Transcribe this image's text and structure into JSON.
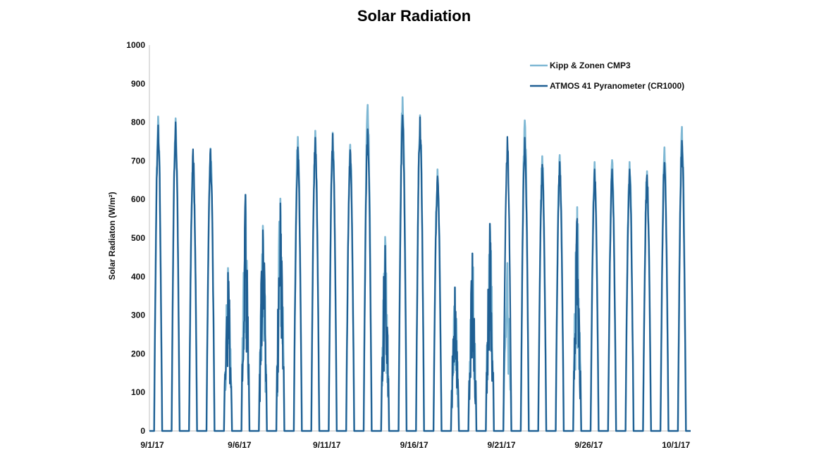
{
  "chart_data": {
    "type": "line",
    "title": "Solar Radiation",
    "xlabel": "",
    "ylabel": "Solar Radiaton (W/m²)",
    "ylim": [
      0,
      1000
    ],
    "yticks": [
      0,
      100,
      200,
      300,
      400,
      500,
      600,
      700,
      800,
      900,
      1000
    ],
    "xlim_days": [
      0,
      31
    ],
    "xticks": [
      {
        "day": 0,
        "label": "9/1/17"
      },
      {
        "day": 5,
        "label": "9/6/17"
      },
      {
        "day": 10,
        "label": "9/11/17"
      },
      {
        "day": 15,
        "label": "9/16/17"
      },
      {
        "day": 20,
        "label": "9/21/17"
      },
      {
        "day": 25,
        "label": "9/26/17"
      },
      {
        "day": 30,
        "label": "10/1/17"
      }
    ],
    "grid": false,
    "legend_position": "top-right",
    "series": [
      {
        "name": "Kipp & Zonen CMP3",
        "color": "#7fb8d4",
        "daily_peak": [
          815,
          810,
          700,
          732,
          422,
          612,
          532,
          602,
          762,
          778,
          773,
          742,
          845,
          503,
          865,
          818,
          678,
          372,
          460,
          537,
          435,
          805,
          712,
          715,
          580,
          697,
          702,
          697,
          673,
          735,
          788
        ]
      },
      {
        "name": "ATMOS 41 Pyranometer (CR1000)",
        "color": "#1f5f93",
        "daily_peak": [
          792,
          800,
          730,
          730,
          410,
          612,
          520,
          590,
          735,
          760,
          770,
          728,
          782,
          480,
          818,
          813,
          660,
          372,
          460,
          537,
          762,
          760,
          690,
          697,
          550,
          678,
          678,
          678,
          663,
          695,
          752
        ]
      }
    ]
  }
}
